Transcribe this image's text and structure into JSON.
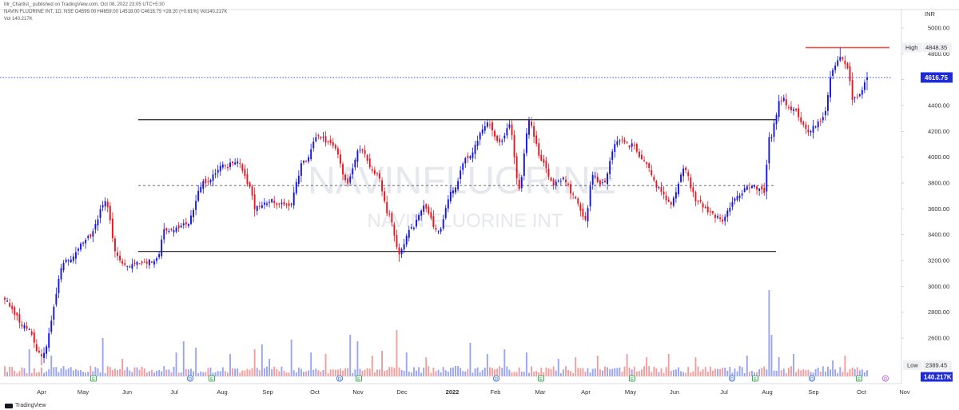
{
  "header": {
    "publish_line": "Mr_Chartist_ published on TradingView.com, Oct 08, 2022 23:05 UTC+5:30",
    "ohlc_line": "NAVIN FLUORINE INT, 1D, NSE  O4599.00  H4659.00  L4518.00  C4616.75  +28.20 (+0.61%)  Vol140.217K",
    "vol_line": "Vol  140.217K"
  },
  "footer": {
    "brand": "TradingView"
  },
  "watermark": {
    "symbol": "NAVINFLUORINE",
    "name": "NAVIN FLUORINE INT"
  },
  "colors": {
    "up": "#1515e0",
    "down": "#e8141f",
    "vol_up": "#9aa4f0",
    "vol_down": "#f19d9d",
    "last_price": "#1f2bd6",
    "high_line": "#ef5350"
  },
  "chart_data": {
    "type": "candlestick",
    "symbol": "NAVIN FLUORINE INT",
    "exchange": "NSE",
    "interval": "1D",
    "currency": "INR",
    "ylim": [
      2350,
      5100
    ],
    "y_ticks": [
      2600,
      2800,
      3000,
      3200,
      3400,
      3600,
      3800,
      4000,
      4200,
      4400,
      4600,
      4800,
      5000
    ],
    "y_tick_labels": [
      "2600.00",
      "2800.00",
      "3000.00",
      "3200.00",
      "3400.00",
      "3600.00",
      "3800.00",
      "4000.00",
      "4200.00",
      "4400.00",
      "4600.00",
      "4800.00",
      "5000.00"
    ],
    "x_ticks": [
      "Apr",
      "May",
      "Jun",
      "Jul",
      "Aug",
      "Sep",
      "Oct",
      "Nov",
      "Dec",
      "2022",
      "Feb",
      "Mar",
      "Apr",
      "May",
      "Jun",
      "Jul",
      "Aug",
      "Sep",
      "Oct",
      "Nov"
    ],
    "anchors": [
      {
        "i": 0,
        "p": 2880
      },
      {
        "i": 8,
        "p": 2700
      },
      {
        "i": 15,
        "p": 2470
      },
      {
        "i": 25,
        "p": 3200
      },
      {
        "i": 35,
        "p": 3400
      },
      {
        "i": 41,
        "p": 3650
      },
      {
        "i": 46,
        "p": 3220
      },
      {
        "i": 50,
        "p": 3160
      },
      {
        "i": 62,
        "p": 3200
      },
      {
        "i": 65,
        "p": 3430
      },
      {
        "i": 74,
        "p": 3480
      },
      {
        "i": 81,
        "p": 3800
      },
      {
        "i": 90,
        "p": 3930
      },
      {
        "i": 95,
        "p": 3960
      },
      {
        "i": 100,
        "p": 3770
      },
      {
        "i": 102,
        "p": 3610
      },
      {
        "i": 108,
        "p": 3660
      },
      {
        "i": 116,
        "p": 3620
      },
      {
        "i": 122,
        "p": 3960
      },
      {
        "i": 128,
        "p": 4160
      },
      {
        "i": 134,
        "p": 4090
      },
      {
        "i": 140,
        "p": 3810
      },
      {
        "i": 145,
        "p": 4060
      },
      {
        "i": 152,
        "p": 3860
      },
      {
        "i": 157,
        "p": 3540
      },
      {
        "i": 161,
        "p": 3260
      },
      {
        "i": 166,
        "p": 3440
      },
      {
        "i": 171,
        "p": 3610
      },
      {
        "i": 177,
        "p": 3420
      },
      {
        "i": 183,
        "p": 3760
      },
      {
        "i": 189,
        "p": 4000
      },
      {
        "i": 197,
        "p": 4270
      },
      {
        "i": 202,
        "p": 4110
      },
      {
        "i": 206,
        "p": 4240
      },
      {
        "i": 210,
        "p": 3750
      },
      {
        "i": 214,
        "p": 4270
      },
      {
        "i": 219,
        "p": 3990
      },
      {
        "i": 224,
        "p": 3790
      },
      {
        "i": 228,
        "p": 3830
      },
      {
        "i": 233,
        "p": 3680
      },
      {
        "i": 237,
        "p": 3510
      },
      {
        "i": 240,
        "p": 3850
      },
      {
        "i": 244,
        "p": 3790
      },
      {
        "i": 250,
        "p": 4120
      },
      {
        "i": 256,
        "p": 4090
      },
      {
        "i": 261,
        "p": 3960
      },
      {
        "i": 267,
        "p": 3760
      },
      {
        "i": 272,
        "p": 3640
      },
      {
        "i": 277,
        "p": 3900
      },
      {
        "i": 283,
        "p": 3660
      },
      {
        "i": 288,
        "p": 3560
      },
      {
        "i": 293,
        "p": 3520
      },
      {
        "i": 299,
        "p": 3710
      },
      {
        "i": 305,
        "p": 3780
      },
      {
        "i": 310,
        "p": 3740
      },
      {
        "i": 312,
        "p": 4140
      },
      {
        "i": 317,
        "p": 4450
      },
      {
        "i": 322,
        "p": 4360
      },
      {
        "i": 328,
        "p": 4200
      },
      {
        "i": 334,
        "p": 4300
      },
      {
        "i": 338,
        "p": 4690
      },
      {
        "i": 341,
        "p": 4780
      },
      {
        "i": 344,
        "p": 4690
      },
      {
        "i": 346,
        "p": 4450
      },
      {
        "i": 349,
        "p": 4500
      },
      {
        "i": 352,
        "p": 4617
      }
    ],
    "n_candles": 353,
    "high": {
      "label": "High",
      "value": "4848.35"
    },
    "low": {
      "label": "Low",
      "value": "2389.45"
    },
    "last": {
      "value": "4616.75"
    },
    "volume": {
      "value": "140.217K"
    },
    "resistance": 4290,
    "midline": 3780,
    "support": 3270,
    "high_line_level": 4848.35,
    "event_markers": [
      "E",
      "D",
      "E",
      "D",
      "E",
      "D",
      "E",
      "E",
      "D",
      "E",
      "D",
      "E",
      "D",
      "E"
    ]
  }
}
